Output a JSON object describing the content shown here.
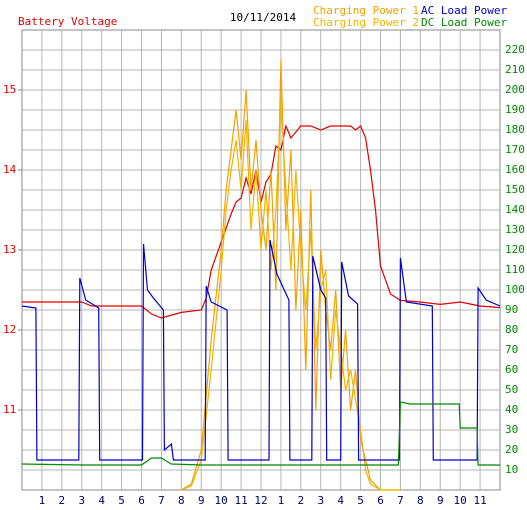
{
  "chart_data": {
    "type": "line",
    "title": "10/11/2014",
    "xlim": [
      0,
      24
    ],
    "xticks": [
      {
        "value": 1,
        "label": "1"
      },
      {
        "value": 2,
        "label": "2"
      },
      {
        "value": 3,
        "label": "3"
      },
      {
        "value": 4,
        "label": "4"
      },
      {
        "value": 5,
        "label": "5"
      },
      {
        "value": 6,
        "label": "6"
      },
      {
        "value": 7,
        "label": "7"
      },
      {
        "value": 8,
        "label": "8"
      },
      {
        "value": 9,
        "label": "9"
      },
      {
        "value": 10,
        "label": "10"
      },
      {
        "value": 11,
        "label": "11"
      },
      {
        "value": 12,
        "label": "12"
      },
      {
        "value": 13,
        "label": "1"
      },
      {
        "value": 14,
        "label": "2"
      },
      {
        "value": 15,
        "label": "3"
      },
      {
        "value": 16,
        "label": "4"
      },
      {
        "value": 17,
        "label": "5"
      },
      {
        "value": 18,
        "label": "6"
      },
      {
        "value": 19,
        "label": "7"
      },
      {
        "value": 20,
        "label": "8"
      },
      {
        "value": 21,
        "label": "9"
      },
      {
        "value": 22,
        "label": "10"
      },
      {
        "value": 23,
        "label": "11"
      }
    ],
    "ylim": [
      10,
      15.75
    ],
    "yticks": [
      11,
      12,
      13,
      14,
      15
    ],
    "y2lim": [
      0,
      230
    ],
    "y2ticks": [
      10,
      20,
      30,
      40,
      50,
      60,
      70,
      80,
      90,
      100,
      110,
      120,
      130,
      140,
      150,
      160,
      170,
      180,
      190,
      200,
      210,
      220
    ],
    "grid": true,
    "series": [
      {
        "name": "Battery Voltage",
        "color": "#e00000",
        "axis": "y",
        "x": [
          0,
          1,
          2,
          3,
          3.5,
          4,
          5,
          6,
          6.5,
          7,
          8,
          9,
          9.25,
          9.5,
          10,
          10.5,
          10.75,
          11,
          11.25,
          11.5,
          11.75,
          12,
          12.25,
          12.5,
          12.75,
          13,
          13.25,
          13.5,
          14,
          14.5,
          15,
          15.5,
          16,
          16.5,
          16.75,
          17,
          17.25,
          17.5,
          17.75,
          18,
          18.5,
          19,
          20,
          21,
          22,
          23,
          24
        ],
        "values": [
          12.35,
          12.35,
          12.35,
          12.35,
          12.3,
          12.3,
          12.3,
          12.3,
          12.2,
          12.15,
          12.22,
          12.25,
          12.4,
          12.75,
          13.1,
          13.45,
          13.6,
          13.65,
          13.9,
          13.7,
          14.0,
          13.6,
          13.85,
          13.95,
          14.3,
          14.25,
          14.55,
          14.4,
          14.55,
          14.55,
          14.5,
          14.55,
          14.55,
          14.55,
          14.5,
          14.55,
          14.4,
          14.0,
          13.5,
          12.8,
          12.45,
          12.37,
          12.35,
          12.32,
          12.35,
          12.3,
          12.28
        ]
      },
      {
        "name": "Charging Power 1",
        "color": "#f5a000",
        "axis": "y2",
        "x": [
          8,
          8.5,
          9,
          9.5,
          10,
          10.25,
          10.5,
          10.75,
          11,
          11.25,
          11.5,
          11.75,
          12,
          12.25,
          12.5,
          12.75,
          13,
          13.25,
          13.5,
          13.75,
          14,
          14.25,
          14.5,
          14.75,
          15,
          15.25,
          15.5,
          15.75,
          16,
          16.25,
          16.5,
          16.75,
          17,
          17.25,
          17.5,
          18,
          19
        ],
        "values": [
          0,
          3,
          20,
          75,
          120,
          150,
          170,
          190,
          165,
          200,
          150,
          175,
          140,
          120,
          160,
          100,
          215,
          130,
          170,
          90,
          140,
          60,
          150,
          40,
          120,
          90,
          70,
          100,
          50,
          80,
          40,
          60,
          25,
          15,
          5,
          0,
          0
        ]
      },
      {
        "name": "Charging Power 2",
        "color": "#f0b400",
        "axis": "y2",
        "x": [
          8,
          8.5,
          9,
          9.5,
          10,
          10.25,
          10.5,
          10.75,
          11,
          11.25,
          11.5,
          11.75,
          12,
          12.25,
          12.5,
          12.75,
          13,
          13.25,
          13.5,
          13.75,
          14,
          14.25,
          14.5,
          14.75,
          15,
          15.25,
          15.5,
          15.75,
          16,
          16.25,
          16.5,
          16.75,
          17,
          17.25,
          17.5,
          18,
          19
        ],
        "values": [
          0,
          2,
          15,
          60,
          110,
          140,
          160,
          175,
          150,
          185,
          130,
          160,
          120,
          150,
          110,
          140,
          195,
          150,
          110,
          160,
          120,
          90,
          130,
          70,
          100,
          110,
          55,
          90,
          70,
          50,
          60,
          45,
          30,
          10,
          3,
          0,
          0
        ]
      },
      {
        "name": "AC Load Power",
        "color": "#0000cc",
        "axis": "y2",
        "x": [
          0,
          0.7,
          0.75,
          2.85,
          2.9,
          3.2,
          3.85,
          3.9,
          6.05,
          6.1,
          6.3,
          6.6,
          7.1,
          7.15,
          7.5,
          7.6,
          9.2,
          9.25,
          9.5,
          10.3,
          10.35,
          12.4,
          12.45,
          12.8,
          13.4,
          13.45,
          14.55,
          14.6,
          15,
          15.25,
          15.3,
          16,
          16.05,
          16.4,
          16.85,
          16.9,
          18.95,
          19,
          19.3,
          20.6,
          20.65,
          22.85,
          22.9,
          23.3,
          24
        ],
        "values": [
          92,
          91,
          15,
          15,
          106,
          95,
          91,
          15,
          15,
          123,
          100,
          96,
          90,
          20,
          23,
          15,
          15,
          102,
          94,
          90,
          15,
          15,
          125,
          108,
          95,
          15,
          15,
          117,
          100,
          96,
          15,
          15,
          114,
          97,
          93,
          15,
          15,
          116,
          94,
          92,
          15,
          15,
          101,
          95,
          92
        ]
      },
      {
        "name": "DC Load Power",
        "color": "#008800",
        "axis": "y2",
        "x": [
          0,
          3,
          6,
          6.5,
          7,
          7.5,
          9,
          12,
          15,
          18.9,
          19,
          19.5,
          21.95,
          22,
          22.85,
          22.9,
          24
        ],
        "values": [
          13,
          12.5,
          12.5,
          16,
          16,
          13,
          12.5,
          12.5,
          12.5,
          12.5,
          44,
          43,
          43,
          31,
          31,
          12.5,
          12.5
        ]
      }
    ]
  }
}
